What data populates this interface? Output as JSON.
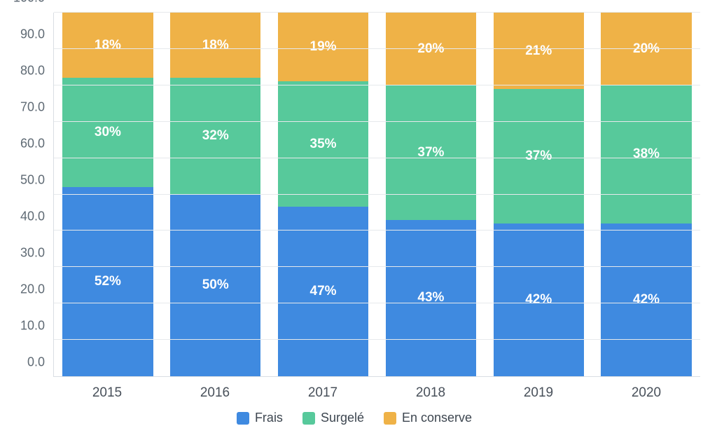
{
  "chart": {
    "type": "stacked-bar",
    "background_color": "#ffffff",
    "axis_color": "#d9dee3",
    "grid_color": "#e6e9ec",
    "tick_label_color": "#5f6a74",
    "x_label_color": "#48505a",
    "tick_fontsize": 18,
    "x_fontsize": 19,
    "seg_fontsize": 19,
    "seg_fontweight": 700,
    "seg_text_color": "#ffffff",
    "y": {
      "min": 0,
      "max": 100,
      "step": 10,
      "decimals": 1
    },
    "bar_width_pct": 84,
    "categories": [
      "2015",
      "2016",
      "2017",
      "2018",
      "2019",
      "2020"
    ],
    "series": [
      {
        "key": "frais",
        "label": "Frais",
        "color": "#3f8ae0"
      },
      {
        "key": "surgele",
        "label": "Surgelé",
        "color": "#57c99b"
      },
      {
        "key": "conserve",
        "label": "En conserve",
        "color": "#efb247"
      }
    ],
    "data": [
      {
        "frais": 52,
        "surgele": 30,
        "conserve": 18
      },
      {
        "frais": 50,
        "surgele": 32,
        "conserve": 18
      },
      {
        "frais": 47,
        "surgele": 35,
        "conserve": 19
      },
      {
        "frais": 43,
        "surgele": 37,
        "conserve": 20
      },
      {
        "frais": 42,
        "surgele": 37,
        "conserve": 21
      },
      {
        "frais": 42,
        "surgele": 38,
        "conserve": 20
      }
    ],
    "legend_fontsize": 18,
    "legend_color": "#3d4650"
  }
}
